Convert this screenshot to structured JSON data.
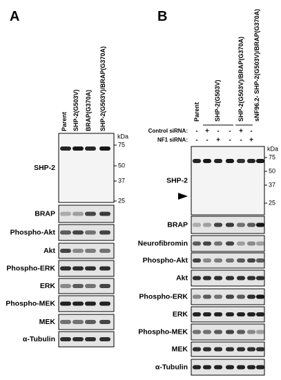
{
  "panels": [
    {
      "label": "A",
      "columns": [
        "Parent",
        "SHP-2(G503V)",
        "BRAP(G370A)",
        "SHP-2(G503V)/BRAP(G370A)"
      ],
      "kda_unit": "kDa",
      "markers": [
        "75",
        "50",
        "37",
        "25"
      ],
      "rows": [
        "SHP-2",
        "BRAP",
        "Phospho-Akt",
        "Akt",
        "Phospho-ERK",
        "ERK",
        "Phospho-MEK",
        "MEK",
        "α-Tubulin"
      ]
    },
    {
      "label": "B",
      "columns": [
        "Parent",
        "SHP-2(G503V)",
        "SHP-2(G503V)/BRAP(G370A)",
        "sNF96.2- SHP-2(G503V)/BRAP(G370A)"
      ],
      "conditions": [
        {
          "label": "Control siRNA:",
          "signs": [
            "-",
            "+",
            "-",
            "-",
            "+",
            "-"
          ]
        },
        {
          "label": "NF1 siRNA:",
          "signs": [
            "-",
            "-",
            "+",
            "-",
            "-",
            "+"
          ]
        }
      ],
      "kda_unit": "kDa",
      "markers": [
        "75",
        "50",
        "37",
        "25"
      ],
      "rows": [
        "SHP-2",
        "BRAP",
        "Neurofibromin",
        "Phospho-Akt",
        "Akt",
        "Phospho-ERK",
        "ERK",
        "Phospho-MEK",
        "MEK",
        "α-Tubulin"
      ]
    }
  ]
}
